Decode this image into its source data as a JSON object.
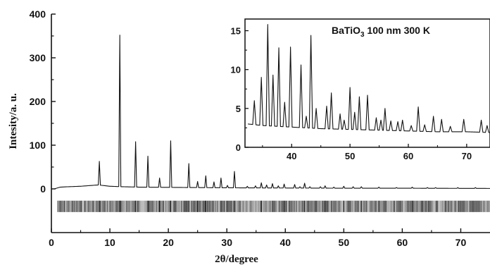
{
  "chart_data": [
    {
      "type": "line",
      "title": "",
      "xlabel": "2θ/degree",
      "ylabel": "Intesity/a. u.",
      "xlim": [
        0,
        75
      ],
      "ylim": [
        -100,
        400
      ],
      "xticks": [
        0,
        10,
        20,
        30,
        40,
        50,
        60,
        70
      ],
      "yticks": [
        0,
        100,
        200,
        300,
        400
      ],
      "grid": false,
      "legend": "none",
      "line_color": "#111111",
      "baseline_points": [
        [
          0.5,
          0
        ],
        [
          1.5,
          4
        ],
        [
          3,
          5
        ],
        [
          5,
          6
        ],
        [
          7,
          8
        ],
        [
          8,
          9
        ],
        [
          10,
          6
        ],
        [
          12,
          5
        ],
        [
          15,
          4
        ],
        [
          20,
          3.5
        ],
        [
          25,
          3
        ],
        [
          30,
          2.5
        ],
        [
          40,
          2
        ],
        [
          50,
          1.5
        ],
        [
          60,
          1.5
        ],
        [
          75,
          1
        ]
      ],
      "peaks": [
        {
          "x": 8.2,
          "y": 63
        },
        {
          "x": 11.7,
          "y": 352
        },
        {
          "x": 14.4,
          "y": 108
        },
        {
          "x": 16.5,
          "y": 75
        },
        {
          "x": 18.5,
          "y": 25
        },
        {
          "x": 20.4,
          "y": 110
        },
        {
          "x": 23.5,
          "y": 58
        },
        {
          "x": 25.0,
          "y": 17
        },
        {
          "x": 26.4,
          "y": 30
        },
        {
          "x": 27.8,
          "y": 16
        },
        {
          "x": 29.0,
          "y": 25
        },
        {
          "x": 30.1,
          "y": 8
        },
        {
          "x": 31.3,
          "y": 40
        },
        {
          "x": 33.5,
          "y": 6
        },
        {
          "x": 34.9,
          "y": 7
        },
        {
          "x": 35.9,
          "y": 14
        },
        {
          "x": 36.8,
          "y": 9
        },
        {
          "x": 37.8,
          "y": 12
        },
        {
          "x": 38.8,
          "y": 7
        },
        {
          "x": 39.8,
          "y": 11
        },
        {
          "x": 41.6,
          "y": 10
        },
        {
          "x": 42.5,
          "y": 5
        },
        {
          "x": 43.3,
          "y": 13
        },
        {
          "x": 44.2,
          "y": 5
        },
        {
          "x": 46.0,
          "y": 5
        },
        {
          "x": 46.8,
          "y": 7
        },
        {
          "x": 48.3,
          "y": 4
        },
        {
          "x": 50.0,
          "y": 6
        },
        {
          "x": 51.6,
          "y": 5
        },
        {
          "x": 53.0,
          "y": 5
        },
        {
          "x": 56.0,
          "y": 4
        },
        {
          "x": 59.0,
          "y": 3
        },
        {
          "x": 61.7,
          "y": 4
        },
        {
          "x": 64.3,
          "y": 3
        },
        {
          "x": 65.7,
          "y": 3
        },
        {
          "x": 69.5,
          "y": 3
        },
        {
          "x": 72.5,
          "y": 3
        }
      ],
      "reference_band": {
        "y_center": -40,
        "x_range": [
          1,
          75
        ],
        "lines": [
          8.2,
          11.7,
          14.4,
          16.5,
          18.5,
          20.4,
          23.5,
          25.0,
          26.4,
          29.0,
          31.3,
          35.9,
          37.8,
          39.8,
          43.3,
          46.8,
          50.0,
          53.0,
          56.0,
          61.7
        ]
      }
    },
    {
      "type": "line",
      "title": "",
      "annotation": "BaTiO3 100 nm 300 K",
      "annotation_parts": {
        "formula": "BaTiO",
        "subscript": "3",
        "rest": " 100 nm 300 K"
      },
      "xlabel": "",
      "ylabel": "",
      "xlim": [
        32,
        74
      ],
      "ylim": [
        0,
        16.5
      ],
      "xticks": [
        40,
        50,
        60,
        70
      ],
      "yticks": [
        0,
        5,
        10,
        15
      ],
      "grid": false,
      "baseline_points": [
        [
          32.5,
          3.0
        ],
        [
          35,
          2.8
        ],
        [
          40,
          2.6
        ],
        [
          45,
          2.4
        ],
        [
          50,
          2.3
        ],
        [
          55,
          2.2
        ],
        [
          60,
          2.1
        ],
        [
          65,
          2.0
        ],
        [
          70,
          2.0
        ],
        [
          74,
          1.9
        ]
      ],
      "peaks": [
        {
          "x": 33.6,
          "y": 6.0
        },
        {
          "x": 34.8,
          "y": 9.0
        },
        {
          "x": 35.9,
          "y": 15.8
        },
        {
          "x": 36.8,
          "y": 9.3
        },
        {
          "x": 37.8,
          "y": 12.8
        },
        {
          "x": 38.8,
          "y": 5.8
        },
        {
          "x": 39.8,
          "y": 12.9
        },
        {
          "x": 41.6,
          "y": 10.6
        },
        {
          "x": 42.5,
          "y": 4.0
        },
        {
          "x": 43.3,
          "y": 14.4
        },
        {
          "x": 44.2,
          "y": 5.0
        },
        {
          "x": 46.0,
          "y": 5.3
        },
        {
          "x": 46.8,
          "y": 7.0
        },
        {
          "x": 48.3,
          "y": 4.3
        },
        {
          "x": 49.0,
          "y": 3.5
        },
        {
          "x": 50.0,
          "y": 7.7
        },
        {
          "x": 50.8,
          "y": 4.5
        },
        {
          "x": 51.6,
          "y": 6.5
        },
        {
          "x": 53.0,
          "y": 6.7
        },
        {
          "x": 54.5,
          "y": 3.8
        },
        {
          "x": 55.3,
          "y": 3.5
        },
        {
          "x": 56.0,
          "y": 5.0
        },
        {
          "x": 57.0,
          "y": 3.4
        },
        {
          "x": 58.2,
          "y": 3.3
        },
        {
          "x": 59.0,
          "y": 3.5
        },
        {
          "x": 60.5,
          "y": 2.8
        },
        {
          "x": 61.7,
          "y": 5.2
        },
        {
          "x": 62.8,
          "y": 2.9
        },
        {
          "x": 64.3,
          "y": 4.0
        },
        {
          "x": 65.7,
          "y": 3.6
        },
        {
          "x": 67.2,
          "y": 2.7
        },
        {
          "x": 69.5,
          "y": 3.6
        },
        {
          "x": 72.5,
          "y": 3.5
        },
        {
          "x": 73.5,
          "y": 2.8
        }
      ]
    }
  ]
}
